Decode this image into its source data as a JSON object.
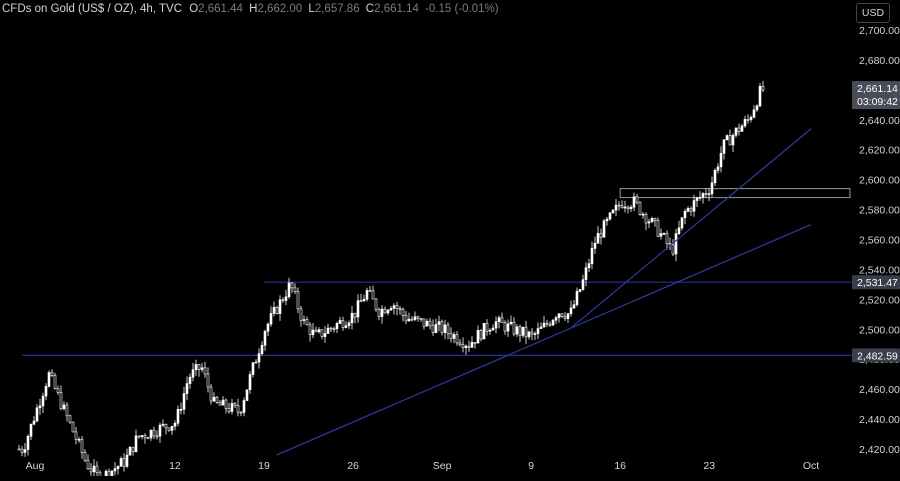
{
  "header": {
    "symbol": "CFDs on Gold (US$ / OZ), 4h, TVC",
    "open_label": "O",
    "open": "2,661.44",
    "high_label": "H",
    "high": "2,662.00",
    "low_label": "L",
    "low": "2,657.86",
    "close_label": "C",
    "close": "2,661.14",
    "change": "-0.15 (-0.01%)"
  },
  "currency_button": "USD",
  "colors": {
    "background": "#000000",
    "candle": "#ffffff",
    "level_line": "#2a2e9a",
    "trendline": "#2f3aa0",
    "resistance_box": "#9598a1",
    "label_bg": "#3a3e4a",
    "price_tag_bg": "#4a4d59",
    "axis_text": "#d1d4dc"
  },
  "chart_data": {
    "type": "candlestick",
    "title": "",
    "ylim": [
      2416,
      2712
    ],
    "y_ticks": [
      2420,
      2440,
      2460,
      2480,
      2500,
      2520,
      2540,
      2560,
      2580,
      2600,
      2620,
      2640,
      2660,
      2680,
      2700
    ],
    "y_tick_labels": [
      "2,420.00",
      "2,440.00",
      "2,460.00",
      "2,480.00",
      "2,500.00",
      "2,520.00",
      "2,540.00",
      "2,560.00",
      "2,580.00",
      "2,600.00",
      "2,620.00",
      "2,640.00",
      "2,660.00",
      "2,680.00",
      "2,700.00"
    ],
    "x_ticks": [
      {
        "label": "Aug",
        "date": "2024-08-01"
      },
      {
        "label": "12",
        "date": "2024-08-12"
      },
      {
        "label": "19",
        "date": "2024-08-19"
      },
      {
        "label": "26",
        "date": "2024-08-26"
      },
      {
        "label": "Sep",
        "date": "2024-09-02"
      },
      {
        "label": "9",
        "date": "2024-09-09"
      },
      {
        "label": "16",
        "date": "2024-09-16"
      },
      {
        "label": "23",
        "date": "2024-09-23"
      },
      {
        "label": "Oct",
        "date": "2024-10-01"
      }
    ],
    "price_path": [
      [
        "2024-07-31",
        2420
      ],
      [
        "2024-08-01",
        2445
      ],
      [
        "2024-08-02",
        2470
      ],
      [
        "2024-08-05",
        2410
      ],
      [
        "2024-08-06",
        2400
      ],
      [
        "2024-08-08",
        2412
      ],
      [
        "2024-08-09",
        2428
      ],
      [
        "2024-08-12",
        2438
      ],
      [
        "2024-08-13",
        2468
      ],
      [
        "2024-08-14",
        2475
      ],
      [
        "2024-08-15",
        2450
      ],
      [
        "2024-08-16",
        2448
      ],
      [
        "2024-08-17",
        2445
      ],
      [
        "2024-08-19",
        2500
      ],
      [
        "2024-08-20",
        2515
      ],
      [
        "2024-08-21",
        2530
      ],
      [
        "2024-08-22",
        2505
      ],
      [
        "2024-08-23",
        2495
      ],
      [
        "2024-08-26",
        2510
      ],
      [
        "2024-08-27",
        2525
      ],
      [
        "2024-08-28",
        2512
      ],
      [
        "2024-08-29",
        2518
      ],
      [
        "2024-08-30",
        2508
      ],
      [
        "2024-09-02",
        2500
      ],
      [
        "2024-09-03",
        2495
      ],
      [
        "2024-09-04",
        2490
      ],
      [
        "2024-09-05",
        2498
      ],
      [
        "2024-09-06",
        2505
      ],
      [
        "2024-09-09",
        2495
      ],
      [
        "2024-09-10",
        2502
      ],
      [
        "2024-09-11",
        2512
      ],
      [
        "2024-09-12",
        2510
      ],
      [
        "2024-09-13",
        2532
      ],
      [
        "2024-09-14",
        2560
      ],
      [
        "2024-09-16",
        2585
      ],
      [
        "2024-09-17",
        2585
      ],
      [
        "2024-09-18",
        2575
      ],
      [
        "2024-09-19",
        2565
      ],
      [
        "2024-09-20",
        2552
      ],
      [
        "2024-09-21",
        2578
      ],
      [
        "2024-09-23",
        2595
      ],
      [
        "2024-09-24",
        2622
      ],
      [
        "2024-09-25",
        2632
      ],
      [
        "2024-09-26",
        2640
      ],
      [
        "2024-09-27",
        2660
      ],
      [
        "2024-09-28",
        2661
      ]
    ],
    "horizontal_levels": [
      {
        "value": 2531.47,
        "label": "2,531.47",
        "start_date": "2024-08-19"
      },
      {
        "value": 2482.59,
        "label": "2,482.59",
        "start_date": "2024-07-31"
      }
    ],
    "resistance_zone": {
      "top": 2594,
      "bottom": 2588,
      "start_date": "2024-09-16"
    },
    "trendlines": [
      {
        "from": [
          "2024-08-20",
          2416
        ],
        "to": [
          "2024-10-01",
          2570
        ]
      },
      {
        "from": [
          "2024-09-12",
          2500
        ],
        "to": [
          "2024-10-01",
          2634
        ]
      }
    ],
    "last_price": {
      "value": 2661.14,
      "label": "2,661.14",
      "countdown": "03:09:42"
    }
  }
}
